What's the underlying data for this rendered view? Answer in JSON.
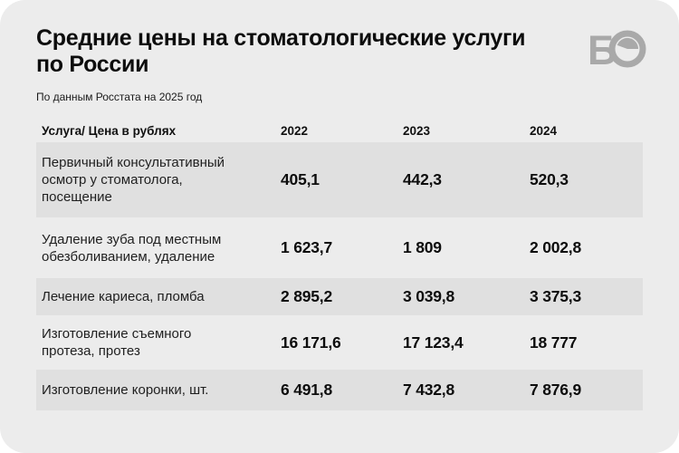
{
  "card": {
    "title": "Средние цены на стоматологические услуги\nпо России",
    "subtitle": "По данным Росстата на 2025 год"
  },
  "logo": {
    "letter": "Б",
    "color": "#a9a9a9",
    "description": "letter B plus clock-face O"
  },
  "colors": {
    "page_background": "#ffffff",
    "card_background": "#ececec",
    "row_band": "#e0e0e0",
    "text": "#0d0d0d"
  },
  "table": {
    "header": [
      "Услуга/ Цена в рублях",
      "2022",
      "2023",
      "2024"
    ],
    "rows": [
      {
        "label": "Первичный консультативный\nосмотр у стоматолога,\nпосещение",
        "values": [
          "405,1",
          "442,3",
          "520,3"
        ]
      },
      {
        "label": "Удаление зуба под местным\nобезболиванием, удаление",
        "values": [
          "1 623,7",
          "1 809",
          "2 002,8"
        ]
      },
      {
        "label": "Лечение кариеса, пломба",
        "values": [
          "2 895,2",
          "3 039,8",
          "3 375,3"
        ]
      },
      {
        "label": "Изготовление съемного\nпротеза, протез",
        "values": [
          "16 171,6",
          "17 123,4",
          "18 777"
        ]
      },
      {
        "label": "Изготовление коронки, шт.",
        "values": [
          "6 491,8",
          "7 432,8",
          "7 876,9"
        ]
      }
    ]
  },
  "chart_data": {
    "type": "table",
    "title": "Средние цены на стоматологические услуги по России",
    "subtitle": "По данным Росстата на 2025 год",
    "units": "рубли",
    "columns": [
      "Услуга/ Цена в рублях",
      "2022",
      "2023",
      "2024"
    ],
    "rows": [
      {
        "service": "Первичный консультативный осмотр у стоматолога, посещение",
        "2022": 405.1,
        "2023": 442.3,
        "2024": 520.3
      },
      {
        "service": "Удаление зуба под местным обезболиванием, удаление",
        "2022": 1623.7,
        "2023": 1809,
        "2024": 2002.8
      },
      {
        "service": "Лечение кариеса, пломба",
        "2022": 2895.2,
        "2023": 3039.8,
        "2024": 3375.3
      },
      {
        "service": "Изготовление съемного протеза, протез",
        "2022": 16171.6,
        "2023": 17123.4,
        "2024": 18777
      },
      {
        "service": "Изготовление коронки, шт.",
        "2022": 6491.8,
        "2023": 7432.8,
        "2024": 7876.9
      }
    ]
  }
}
